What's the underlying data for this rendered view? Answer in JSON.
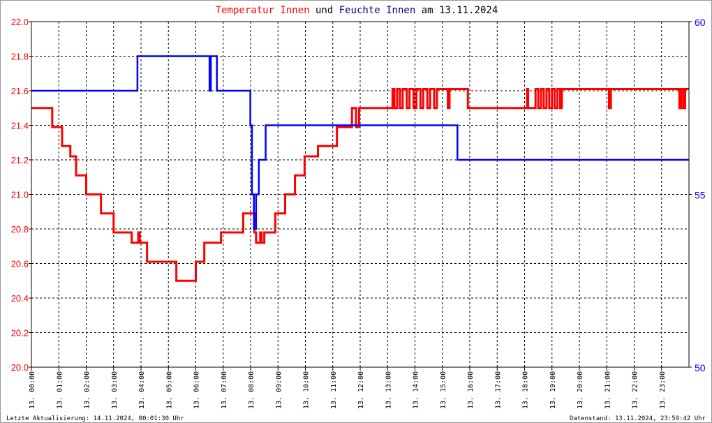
{
  "chart_data": {
    "type": "line",
    "title_parts": [
      {
        "text": "Temperatur Innen",
        "color": "#ff0000"
      },
      {
        "text": " und ",
        "color": "#000000"
      },
      {
        "text": "Feuchte Innen",
        "color": "#000080"
      },
      {
        "text": " am 13.11.2024",
        "color": "#000000"
      }
    ],
    "x_ticks": [
      "13. 00:00",
      "13. 01:00",
      "13. 02:00",
      "13. 03:00",
      "13. 04:00",
      "13. 05:00",
      "13. 06:00",
      "13. 07:00",
      "13. 08:00",
      "13. 09:00",
      "13. 10:00",
      "13. 11:00",
      "13. 12:00",
      "13. 13:00",
      "13. 14:00",
      "13. 15:00",
      "13. 16:00",
      "13. 17:00",
      "13. 18:00",
      "13. 19:00",
      "13. 20:00",
      "13. 21:00",
      "13. 22:00",
      "13. 23:00"
    ],
    "xlim_hours": [
      0,
      24
    ],
    "y_left": {
      "lim": [
        20.0,
        22.0
      ],
      "ticks": [
        "20.0",
        "20.2",
        "20.4",
        "20.6",
        "20.8",
        "21.0",
        "21.2",
        "21.4",
        "21.6",
        "21.8",
        "22.0"
      ],
      "color": "#ff0000"
    },
    "y_right": {
      "lim": [
        50,
        60
      ],
      "ticks": [
        "50",
        "55",
        "60"
      ],
      "color": "#0000ff"
    },
    "grid": true,
    "series": [
      {
        "axis": "left",
        "color": "#ff0000",
        "step": true,
        "points": [
          [
            0,
            21.5
          ],
          [
            0.76,
            21.39
          ],
          [
            1.12,
            21.28
          ],
          [
            1.42,
            21.22
          ],
          [
            1.63,
            21.11
          ],
          [
            2.0,
            21.0
          ],
          [
            2.54,
            20.89
          ],
          [
            3.0,
            20.78
          ],
          [
            3.66,
            20.72
          ],
          [
            3.9,
            20.78
          ],
          [
            3.95,
            20.72
          ],
          [
            4.22,
            20.61
          ],
          [
            5.29,
            20.5
          ],
          [
            6.0,
            20.61
          ],
          [
            6.31,
            20.72
          ],
          [
            6.92,
            20.78
          ],
          [
            7.73,
            20.89
          ],
          [
            8.14,
            20.78
          ],
          [
            8.2,
            20.72
          ],
          [
            8.35,
            20.78
          ],
          [
            8.4,
            20.72
          ],
          [
            8.5,
            20.78
          ],
          [
            8.9,
            20.89
          ],
          [
            9.26,
            21.0
          ],
          [
            9.62,
            21.11
          ],
          [
            9.97,
            21.22
          ],
          [
            10.46,
            21.28
          ],
          [
            11.15,
            21.39
          ],
          [
            11.7,
            21.5
          ],
          [
            11.85,
            21.39
          ],
          [
            11.96,
            21.5
          ],
          [
            13.18,
            21.61
          ],
          [
            13.25,
            21.5
          ],
          [
            13.35,
            21.61
          ],
          [
            13.45,
            21.5
          ],
          [
            13.55,
            21.61
          ],
          [
            13.7,
            21.5
          ],
          [
            13.8,
            21.61
          ],
          [
            13.95,
            21.5
          ],
          [
            14.05,
            21.61
          ],
          [
            14.2,
            21.5
          ],
          [
            14.3,
            21.61
          ],
          [
            14.45,
            21.5
          ],
          [
            14.55,
            21.61
          ],
          [
            14.7,
            21.5
          ],
          [
            14.8,
            21.61
          ],
          [
            15.2,
            21.5
          ],
          [
            15.26,
            21.61
          ],
          [
            15.93,
            21.5
          ],
          [
            18.09,
            21.61
          ],
          [
            18.13,
            21.5
          ],
          [
            18.4,
            21.61
          ],
          [
            18.5,
            21.5
          ],
          [
            18.6,
            21.61
          ],
          [
            18.7,
            21.5
          ],
          [
            18.8,
            21.61
          ],
          [
            18.9,
            21.5
          ],
          [
            19.0,
            21.61
          ],
          [
            19.1,
            21.5
          ],
          [
            19.2,
            21.61
          ],
          [
            19.3,
            21.5
          ],
          [
            19.36,
            21.61
          ],
          [
            21.08,
            21.5
          ],
          [
            21.15,
            21.61
          ],
          [
            23.65,
            21.5
          ],
          [
            23.72,
            21.61
          ],
          [
            23.8,
            21.5
          ],
          [
            23.86,
            21.61
          ],
          [
            24,
            21.61
          ]
        ]
      },
      {
        "axis": "right",
        "color": "#0000ff",
        "step": true,
        "points": [
          [
            0,
            58
          ],
          [
            3.87,
            59
          ],
          [
            6.5,
            58
          ],
          [
            6.55,
            59
          ],
          [
            6.77,
            58
          ],
          [
            7.99,
            57
          ],
          [
            8.05,
            55
          ],
          [
            8.12,
            54
          ],
          [
            8.2,
            55
          ],
          [
            8.3,
            56
          ],
          [
            8.55,
            57
          ],
          [
            15.55,
            56
          ],
          [
            24,
            56
          ]
        ]
      }
    ]
  },
  "footer": {
    "left": "Letzte Aktualisierung: 14.11.2024, 00:01:30 Uhr",
    "right": "Datenstand: 13.11.2024, 23:59:42 Uhr"
  }
}
